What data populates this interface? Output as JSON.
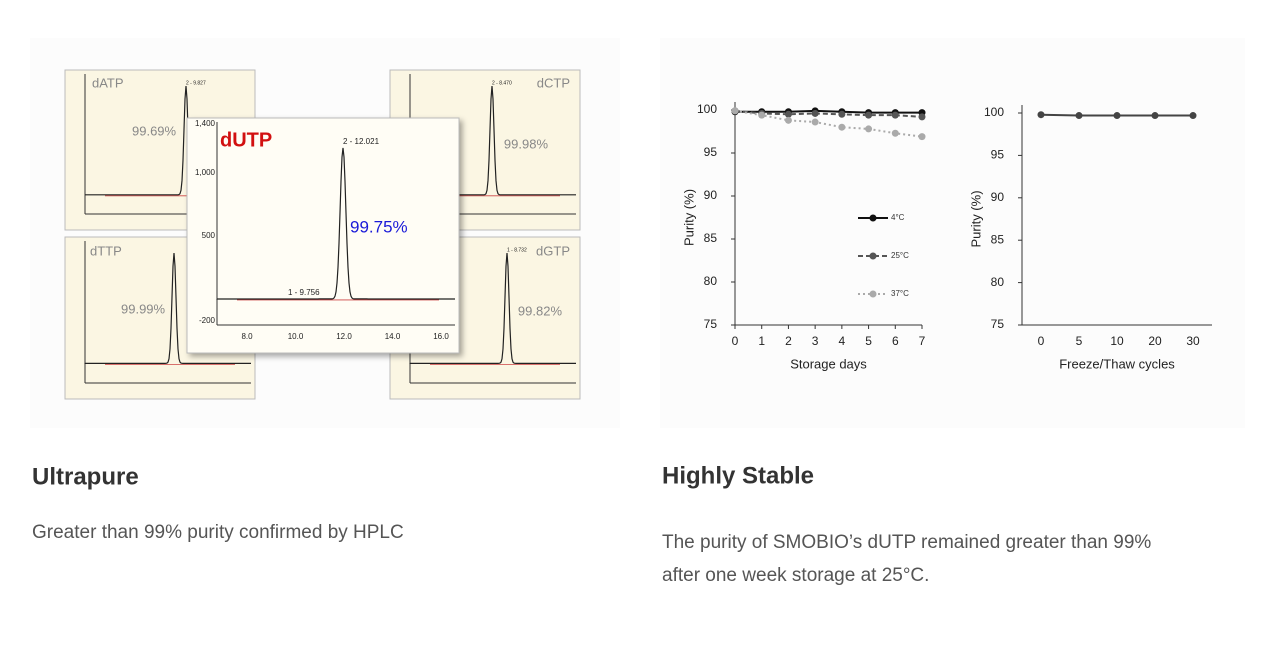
{
  "left": {
    "heading": "Ultrapure",
    "text": "Greater than 99% purity confirmed by HPLC",
    "hplc": [
      {
        "name": "dATP",
        "purity": "99.69%",
        "peak_labels": [
          "2 - 9.827"
        ]
      },
      {
        "name": "dCTP",
        "purity": "99.98%",
        "peak_labels": [
          "2 - 8.470"
        ]
      },
      {
        "name": "dTTP",
        "purity": "99.99%",
        "peak_labels": []
      },
      {
        "name": "dGTP",
        "purity": "99.82%",
        "peak_labels": [
          "1 - 8.732"
        ]
      },
      {
        "name": "dUTP",
        "purity": "99.75%",
        "peak_labels": [
          "2 - 12.021",
          "1 - 9.756"
        ],
        "yticks": [
          "1,400",
          "1,000",
          "500",
          "-200"
        ],
        "xticks": [
          "8.0",
          "10.0",
          "12.0",
          "14.0",
          "16.0"
        ]
      }
    ]
  },
  "right": {
    "heading": "Highly Stable",
    "text": [
      "The purity of SMOBIO’s dUTP remained greater than 99%",
      "after one week storage at 25°C."
    ]
  },
  "chart_data": [
    {
      "type": "line",
      "xlabel": "Storage days",
      "ylabel": "Purity (%)",
      "x": [
        0,
        1,
        2,
        3,
        4,
        5,
        6,
        7
      ],
      "xlim": [
        0,
        7
      ],
      "xticks": [
        0,
        1,
        2,
        3,
        4,
        5,
        6,
        7
      ],
      "ylim": [
        75,
        100
      ],
      "yticks": [
        75,
        80,
        85,
        90,
        95,
        100
      ],
      "grid": false,
      "series": [
        {
          "name": "4°C",
          "color": "#111111",
          "dash": "solid",
          "values": [
            99.8,
            99.8,
            99.8,
            99.9,
            99.8,
            99.7,
            99.7,
            99.7
          ]
        },
        {
          "name": "25°C",
          "color": "#555555",
          "dash": "dashed",
          "values": [
            99.9,
            99.6,
            99.5,
            99.6,
            99.5,
            99.4,
            99.4,
            99.2
          ]
        },
        {
          "name": "37°C",
          "color": "#aaaaaa",
          "dash": "dotted",
          "values": [
            99.9,
            99.4,
            98.8,
            98.6,
            98.0,
            97.8,
            97.3,
            96.9
          ]
        }
      ]
    },
    {
      "type": "line",
      "xlabel": "Freeze/Thaw cycles",
      "ylabel": "Purity (%)",
      "categories": [
        "0",
        "5",
        "10",
        "20",
        "30"
      ],
      "ylim": [
        75,
        100
      ],
      "yticks": [
        75,
        80,
        85,
        90,
        95,
        100
      ],
      "grid": false,
      "series": [
        {
          "color": "#444444",
          "dash": "solid",
          "values": [
            99.8,
            99.7,
            99.7,
            99.7,
            99.7
          ]
        }
      ]
    }
  ]
}
